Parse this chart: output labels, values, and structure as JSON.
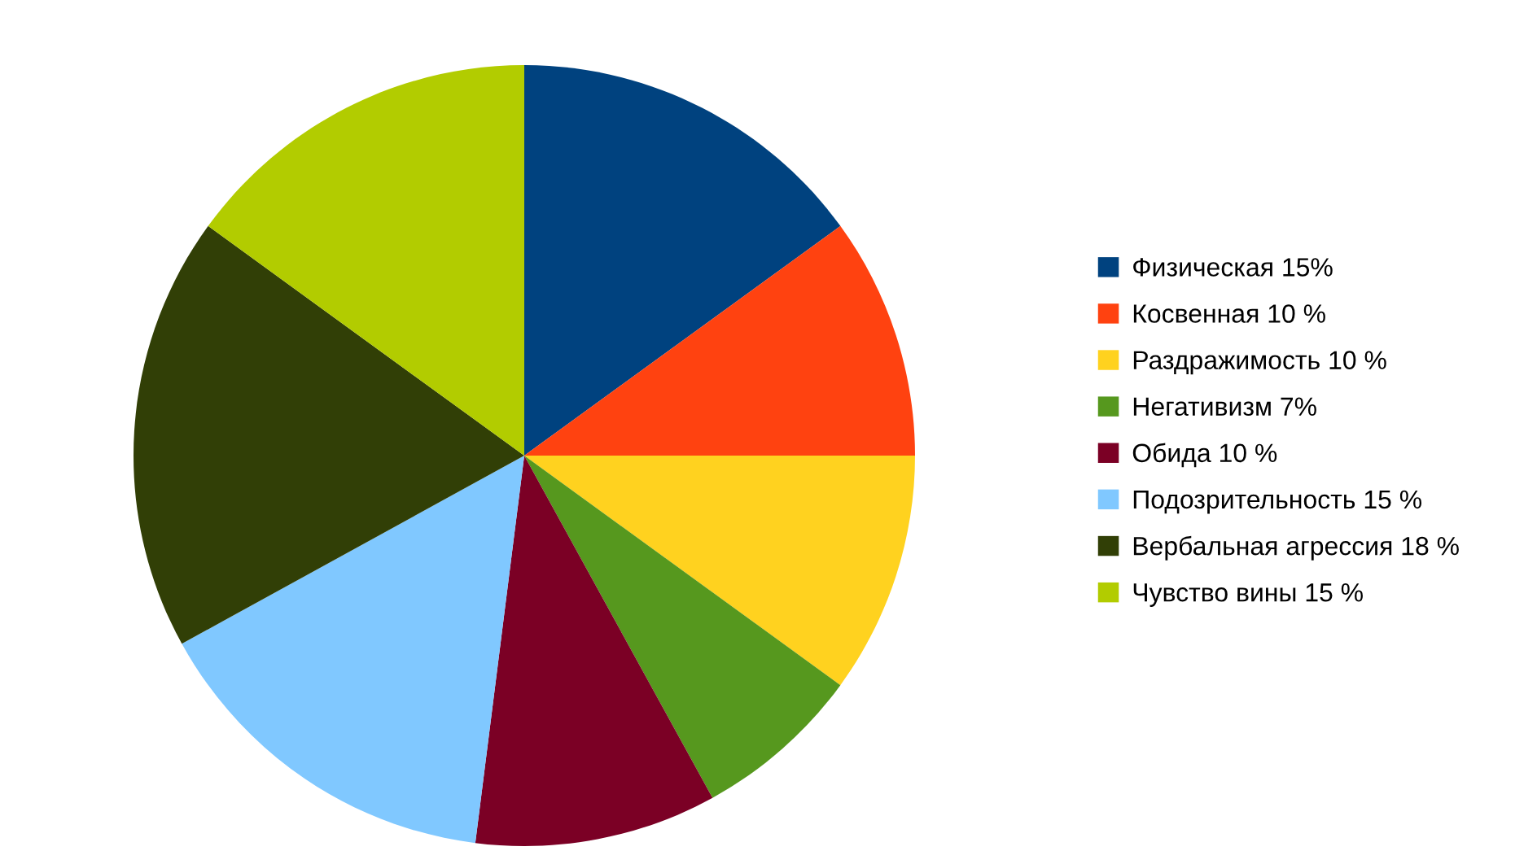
{
  "chart_data": {
    "type": "pie",
    "categories": [
      "Физическая 15%",
      "Косвенная 10 %",
      "Раздражимость 10 %",
      "Негативизм 7%",
      "Обида 10 %",
      "Подозрительность 15 %",
      "Вербальная агрессия 18 %",
      "Чувство вины 15 %"
    ],
    "values": [
      15,
      10,
      10,
      7,
      10,
      15,
      18,
      15
    ],
    "colors": [
      "#00427f",
      "#ff4210",
      "#ffd21f",
      "#56981e",
      "#7b0025",
      "#80c8ff",
      "#313f06",
      "#b2cc00"
    ],
    "legend": "right"
  }
}
